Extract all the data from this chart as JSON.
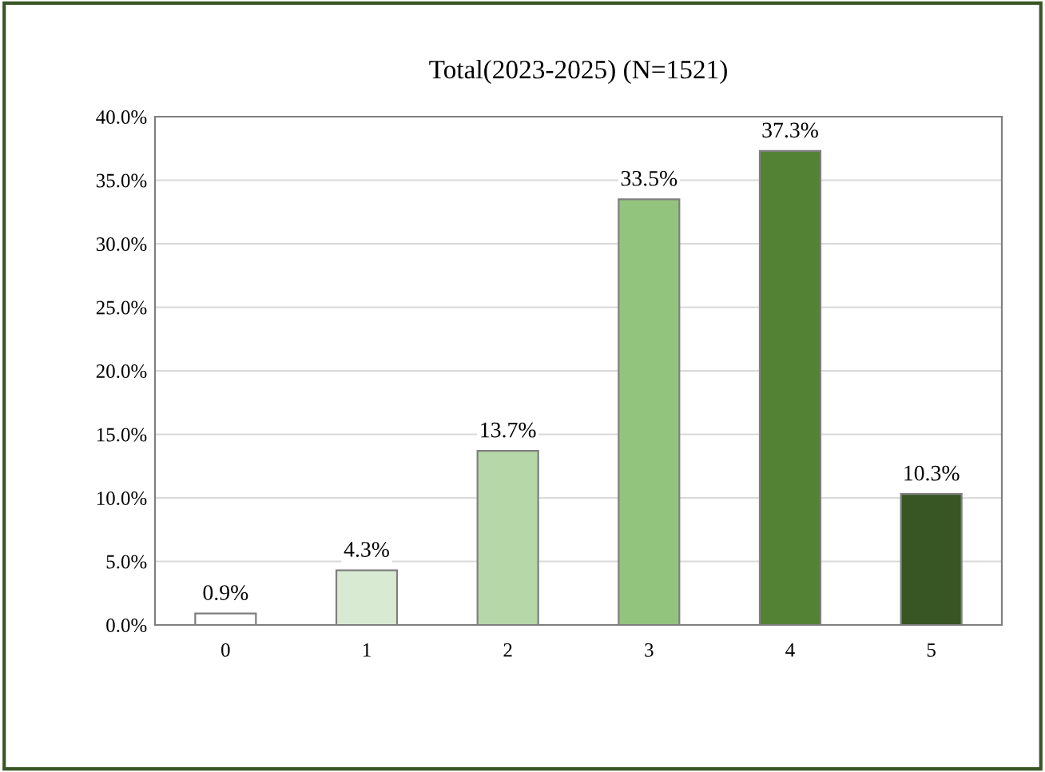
{
  "chart_data": {
    "type": "bar",
    "title": "Total(2023-2025) (N=1521)",
    "categories": [
      "0",
      "1",
      "2",
      "3",
      "4",
      "5"
    ],
    "values": [
      0.9,
      4.3,
      13.7,
      33.5,
      37.3,
      10.3
    ],
    "colors": [
      "#ffffff",
      "#d9ead3",
      "#b6d7a8",
      "#93c47d",
      "#548235",
      "#375623"
    ],
    "value_labels": [
      "0.9%",
      "4.3%",
      "13.7%",
      "33.5%",
      "37.3%",
      "10.3%"
    ],
    "ylim": [
      0,
      40
    ],
    "yticks": [
      {
        "value": 0,
        "label": "0.0%"
      },
      {
        "value": 5,
        "label": "5.0%"
      },
      {
        "value": 10,
        "label": "10.0%"
      },
      {
        "value": 15,
        "label": "15.0%"
      },
      {
        "value": 20,
        "label": "20.0%"
      },
      {
        "value": 25,
        "label": "25.0%"
      },
      {
        "value": 30,
        "label": "30.0%"
      },
      {
        "value": 35,
        "label": "35.0%"
      },
      {
        "value": 40,
        "label": "40.0%"
      }
    ],
    "grid": "y",
    "legend": false
  }
}
